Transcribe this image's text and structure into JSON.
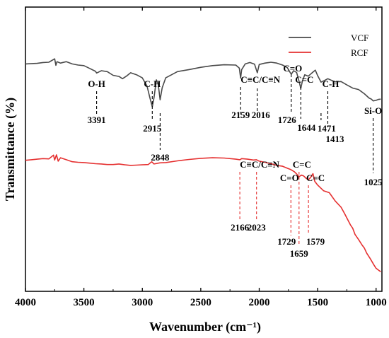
{
  "chart_data": {
    "type": "line",
    "title": "",
    "xlabel": "Wavenumber (cm⁻¹)",
    "ylabel": "Transmittance (%)",
    "xlim": [
      4000,
      950
    ],
    "x_reversed": true,
    "xticks": [
      4000,
      3500,
      3000,
      2500,
      2000,
      1500,
      1000
    ],
    "ylim": [
      0,
      100
    ],
    "yticks_shown": false,
    "grid": false,
    "legend_position": "top-right",
    "series": [
      {
        "name": "VCF",
        "color": "#4a4a4a",
        "points": [
          [
            4000,
            80.0
          ],
          [
            3900,
            80.2
          ],
          [
            3850,
            80.5
          ],
          [
            3800,
            80.6
          ],
          [
            3750,
            81.8
          ],
          [
            3740,
            79.5
          ],
          [
            3730,
            80.8
          ],
          [
            3700,
            80.3
          ],
          [
            3650,
            80.8
          ],
          [
            3600,
            80.0
          ],
          [
            3550,
            79.6
          ],
          [
            3500,
            79.4
          ],
          [
            3450,
            78.4
          ],
          [
            3400,
            77.4
          ],
          [
            3391,
            76.8
          ],
          [
            3350,
            77.6
          ],
          [
            3300,
            77.3
          ],
          [
            3250,
            76.0
          ],
          [
            3200,
            75.6
          ],
          [
            3170,
            74.8
          ],
          [
            3130,
            75.9
          ],
          [
            3100,
            76.9
          ],
          [
            3050,
            76.2
          ],
          [
            3000,
            75.1
          ],
          [
            2960,
            72.2
          ],
          [
            2935,
            68.0
          ],
          [
            2915,
            64.9
          ],
          [
            2900,
            68.2
          ],
          [
            2880,
            74.4
          ],
          [
            2865,
            73.0
          ],
          [
            2848,
            67.4
          ],
          [
            2830,
            71.6
          ],
          [
            2800,
            75.1
          ],
          [
            2750,
            76.2
          ],
          [
            2700,
            77.3
          ],
          [
            2600,
            78.0
          ],
          [
            2500,
            78.8
          ],
          [
            2400,
            79.4
          ],
          [
            2300,
            79.7
          ],
          [
            2200,
            79.6
          ],
          [
            2170,
            78.5
          ],
          [
            2159,
            75.0
          ],
          [
            2150,
            78.0
          ],
          [
            2120,
            80.0
          ],
          [
            2080,
            80.5
          ],
          [
            2040,
            79.9
          ],
          [
            2016,
            76.9
          ],
          [
            2000,
            79.8
          ],
          [
            1950,
            80.3
          ],
          [
            1900,
            80.6
          ],
          [
            1850,
            80.3
          ],
          [
            1800,
            79.6
          ],
          [
            1760,
            78.7
          ],
          [
            1740,
            77.3
          ],
          [
            1726,
            76.4
          ],
          [
            1705,
            77.6
          ],
          [
            1680,
            77.0
          ],
          [
            1660,
            74.0
          ],
          [
            1644,
            71.4
          ],
          [
            1630,
            74.0
          ],
          [
            1610,
            76.2
          ],
          [
            1580,
            75.7
          ],
          [
            1550,
            76.8
          ],
          [
            1520,
            77.8
          ],
          [
            1500,
            75.9
          ],
          [
            1471,
            73.6
          ],
          [
            1440,
            74.2
          ],
          [
            1413,
            74.8
          ],
          [
            1380,
            74.2
          ],
          [
            1350,
            73.7
          ],
          [
            1300,
            73.8
          ],
          [
            1250,
            72.6
          ],
          [
            1200,
            71.5
          ],
          [
            1150,
            71.0
          ],
          [
            1100,
            69.5
          ],
          [
            1060,
            68.0
          ],
          [
            1040,
            67.6
          ],
          [
            1025,
            67.0
          ],
          [
            1000,
            67.2
          ],
          [
            980,
            67.5
          ],
          [
            960,
            67.6
          ]
        ]
      },
      {
        "name": "RCF",
        "color": "#e53030",
        "points": [
          [
            4000,
            46.1
          ],
          [
            3950,
            46.3
          ],
          [
            3900,
            46.5
          ],
          [
            3850,
            46.7
          ],
          [
            3800,
            46.6
          ],
          [
            3760,
            47.9
          ],
          [
            3750,
            46.2
          ],
          [
            3735,
            48.0
          ],
          [
            3720,
            45.8
          ],
          [
            3700,
            47.0
          ],
          [
            3650,
            46.3
          ],
          [
            3600,
            45.6
          ],
          [
            3550,
            45.4
          ],
          [
            3500,
            45.3
          ],
          [
            3450,
            45.1
          ],
          [
            3400,
            44.9
          ],
          [
            3350,
            44.8
          ],
          [
            3300,
            44.6
          ],
          [
            3250,
            44.6
          ],
          [
            3200,
            44.8
          ],
          [
            3150,
            44.5
          ],
          [
            3100,
            44.3
          ],
          [
            3050,
            44.4
          ],
          [
            3000,
            44.5
          ],
          [
            2950,
            44.6
          ],
          [
            2920,
            45.6
          ],
          [
            2900,
            44.8
          ],
          [
            2850,
            45.2
          ],
          [
            2800,
            45.3
          ],
          [
            2700,
            45.9
          ],
          [
            2600,
            46.4
          ],
          [
            2500,
            46.8
          ],
          [
            2400,
            47.0
          ],
          [
            2300,
            46.9
          ],
          [
            2200,
            46.5
          ],
          [
            2166,
            46.3
          ],
          [
            2150,
            46.7
          ],
          [
            2100,
            46.5
          ],
          [
            2050,
            46.2
          ],
          [
            2023,
            46.3
          ],
          [
            2000,
            45.8
          ],
          [
            1950,
            45.4
          ],
          [
            1900,
            44.9
          ],
          [
            1850,
            44.3
          ],
          [
            1800,
            44.0
          ],
          [
            1760,
            43.3
          ],
          [
            1729,
            42.8
          ],
          [
            1700,
            42.1
          ],
          [
            1680,
            41.3
          ],
          [
            1659,
            40.3
          ],
          [
            1640,
            40.9
          ],
          [
            1620,
            40.6
          ],
          [
            1600,
            39.8
          ],
          [
            1579,
            39.2
          ],
          [
            1560,
            40.1
          ],
          [
            1540,
            41.4
          ],
          [
            1525,
            38.7
          ],
          [
            1500,
            37.4
          ],
          [
            1450,
            35.4
          ],
          [
            1400,
            34.7
          ],
          [
            1350,
            31.8
          ],
          [
            1300,
            29.6
          ],
          [
            1270,
            27.4
          ],
          [
            1250,
            25.8
          ],
          [
            1220,
            23.4
          ],
          [
            1200,
            22.2
          ],
          [
            1180,
            20.0
          ],
          [
            1150,
            18.2
          ],
          [
            1120,
            16.3
          ],
          [
            1100,
            15.2
          ],
          [
            1080,
            13.4
          ],
          [
            1050,
            11.5
          ],
          [
            1020,
            9.4
          ],
          [
            1000,
            8.1
          ],
          [
            980,
            7.5
          ],
          [
            960,
            6.9
          ]
        ]
      }
    ],
    "annotations": [
      {
        "series": "VCF",
        "x": 3391,
        "group": "O-H",
        "number": "3391"
      },
      {
        "series": "VCF",
        "x": 2915,
        "group": "C-H",
        "number": "2915"
      },
      {
        "series": "VCF",
        "x": 2848,
        "group": "",
        "number": "2848"
      },
      {
        "series": "VCF",
        "x": 2159,
        "group": "C≡C/C≡N",
        "number": "2159"
      },
      {
        "series": "VCF",
        "x": 2016,
        "group": "",
        "number": "2016"
      },
      {
        "series": "VCF",
        "x": 1726,
        "group": "C=O",
        "number": "1726"
      },
      {
        "series": "VCF",
        "x": 1644,
        "group": "C=C",
        "number": "1644"
      },
      {
        "series": "VCF",
        "x": 1471,
        "group": "",
        "number": "1471"
      },
      {
        "series": "VCF",
        "x": 1413,
        "group": "C-H",
        "number": "1413"
      },
      {
        "series": "VCF",
        "x": 1025,
        "group": "Si-O",
        "number": "1025"
      },
      {
        "series": "RCF",
        "x": 2166,
        "group": "C≡C/C≡N",
        "number": "2166"
      },
      {
        "series": "RCF",
        "x": 2023,
        "group": "",
        "number": "2023"
      },
      {
        "series": "RCF",
        "x": 1729,
        "group": "C=O",
        "number": "1729"
      },
      {
        "series": "RCF",
        "x": 1659,
        "group": "C=C",
        "number": "1659"
      },
      {
        "series": "RCF",
        "x": 1579,
        "group": "C=C",
        "number": "1579"
      }
    ]
  }
}
